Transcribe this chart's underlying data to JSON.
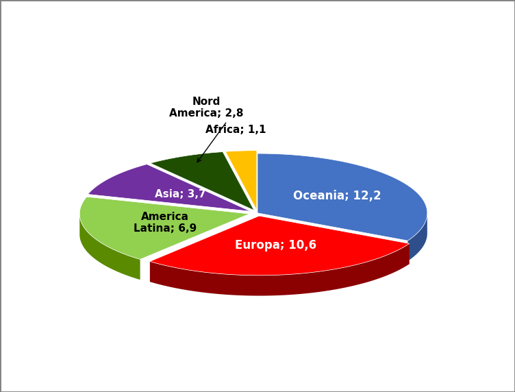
{
  "labels": [
    "Oceania",
    "Europa",
    "America\nLatina",
    "Asia",
    "Nord\nAmerica",
    "Africa"
  ],
  "values": [
    12.2,
    10.6,
    6.9,
    3.7,
    2.8,
    1.1
  ],
  "colors": [
    "#4472C4",
    "#FF0000",
    "#92D050",
    "#7030A0",
    "#1F4E00",
    "#FFC000"
  ],
  "dark_colors": [
    "#2E4F8C",
    "#8B0000",
    "#5A8A00",
    "#4A1A6A",
    "#0A2800",
    "#A07800"
  ],
  "explode": [
    0.0,
    0.05,
    0.05,
    0.05,
    0.05,
    0.05
  ],
  "startangle": 90,
  "background_color": "#FFFFFF",
  "border_color": "#808080",
  "thickness": 0.12,
  "label_texts": [
    "Oceania; 12,2",
    "Europa; 10,6",
    "America\nLatina; 6,9",
    "Asia; 3,7",
    "Nord\nAmerica; 2,8",
    "Africa; 1,1"
  ],
  "label_colors": [
    "white",
    "white",
    "black",
    "white",
    "black",
    "black"
  ],
  "figsize": [
    7.52,
    5.72
  ],
  "dpi": 100
}
